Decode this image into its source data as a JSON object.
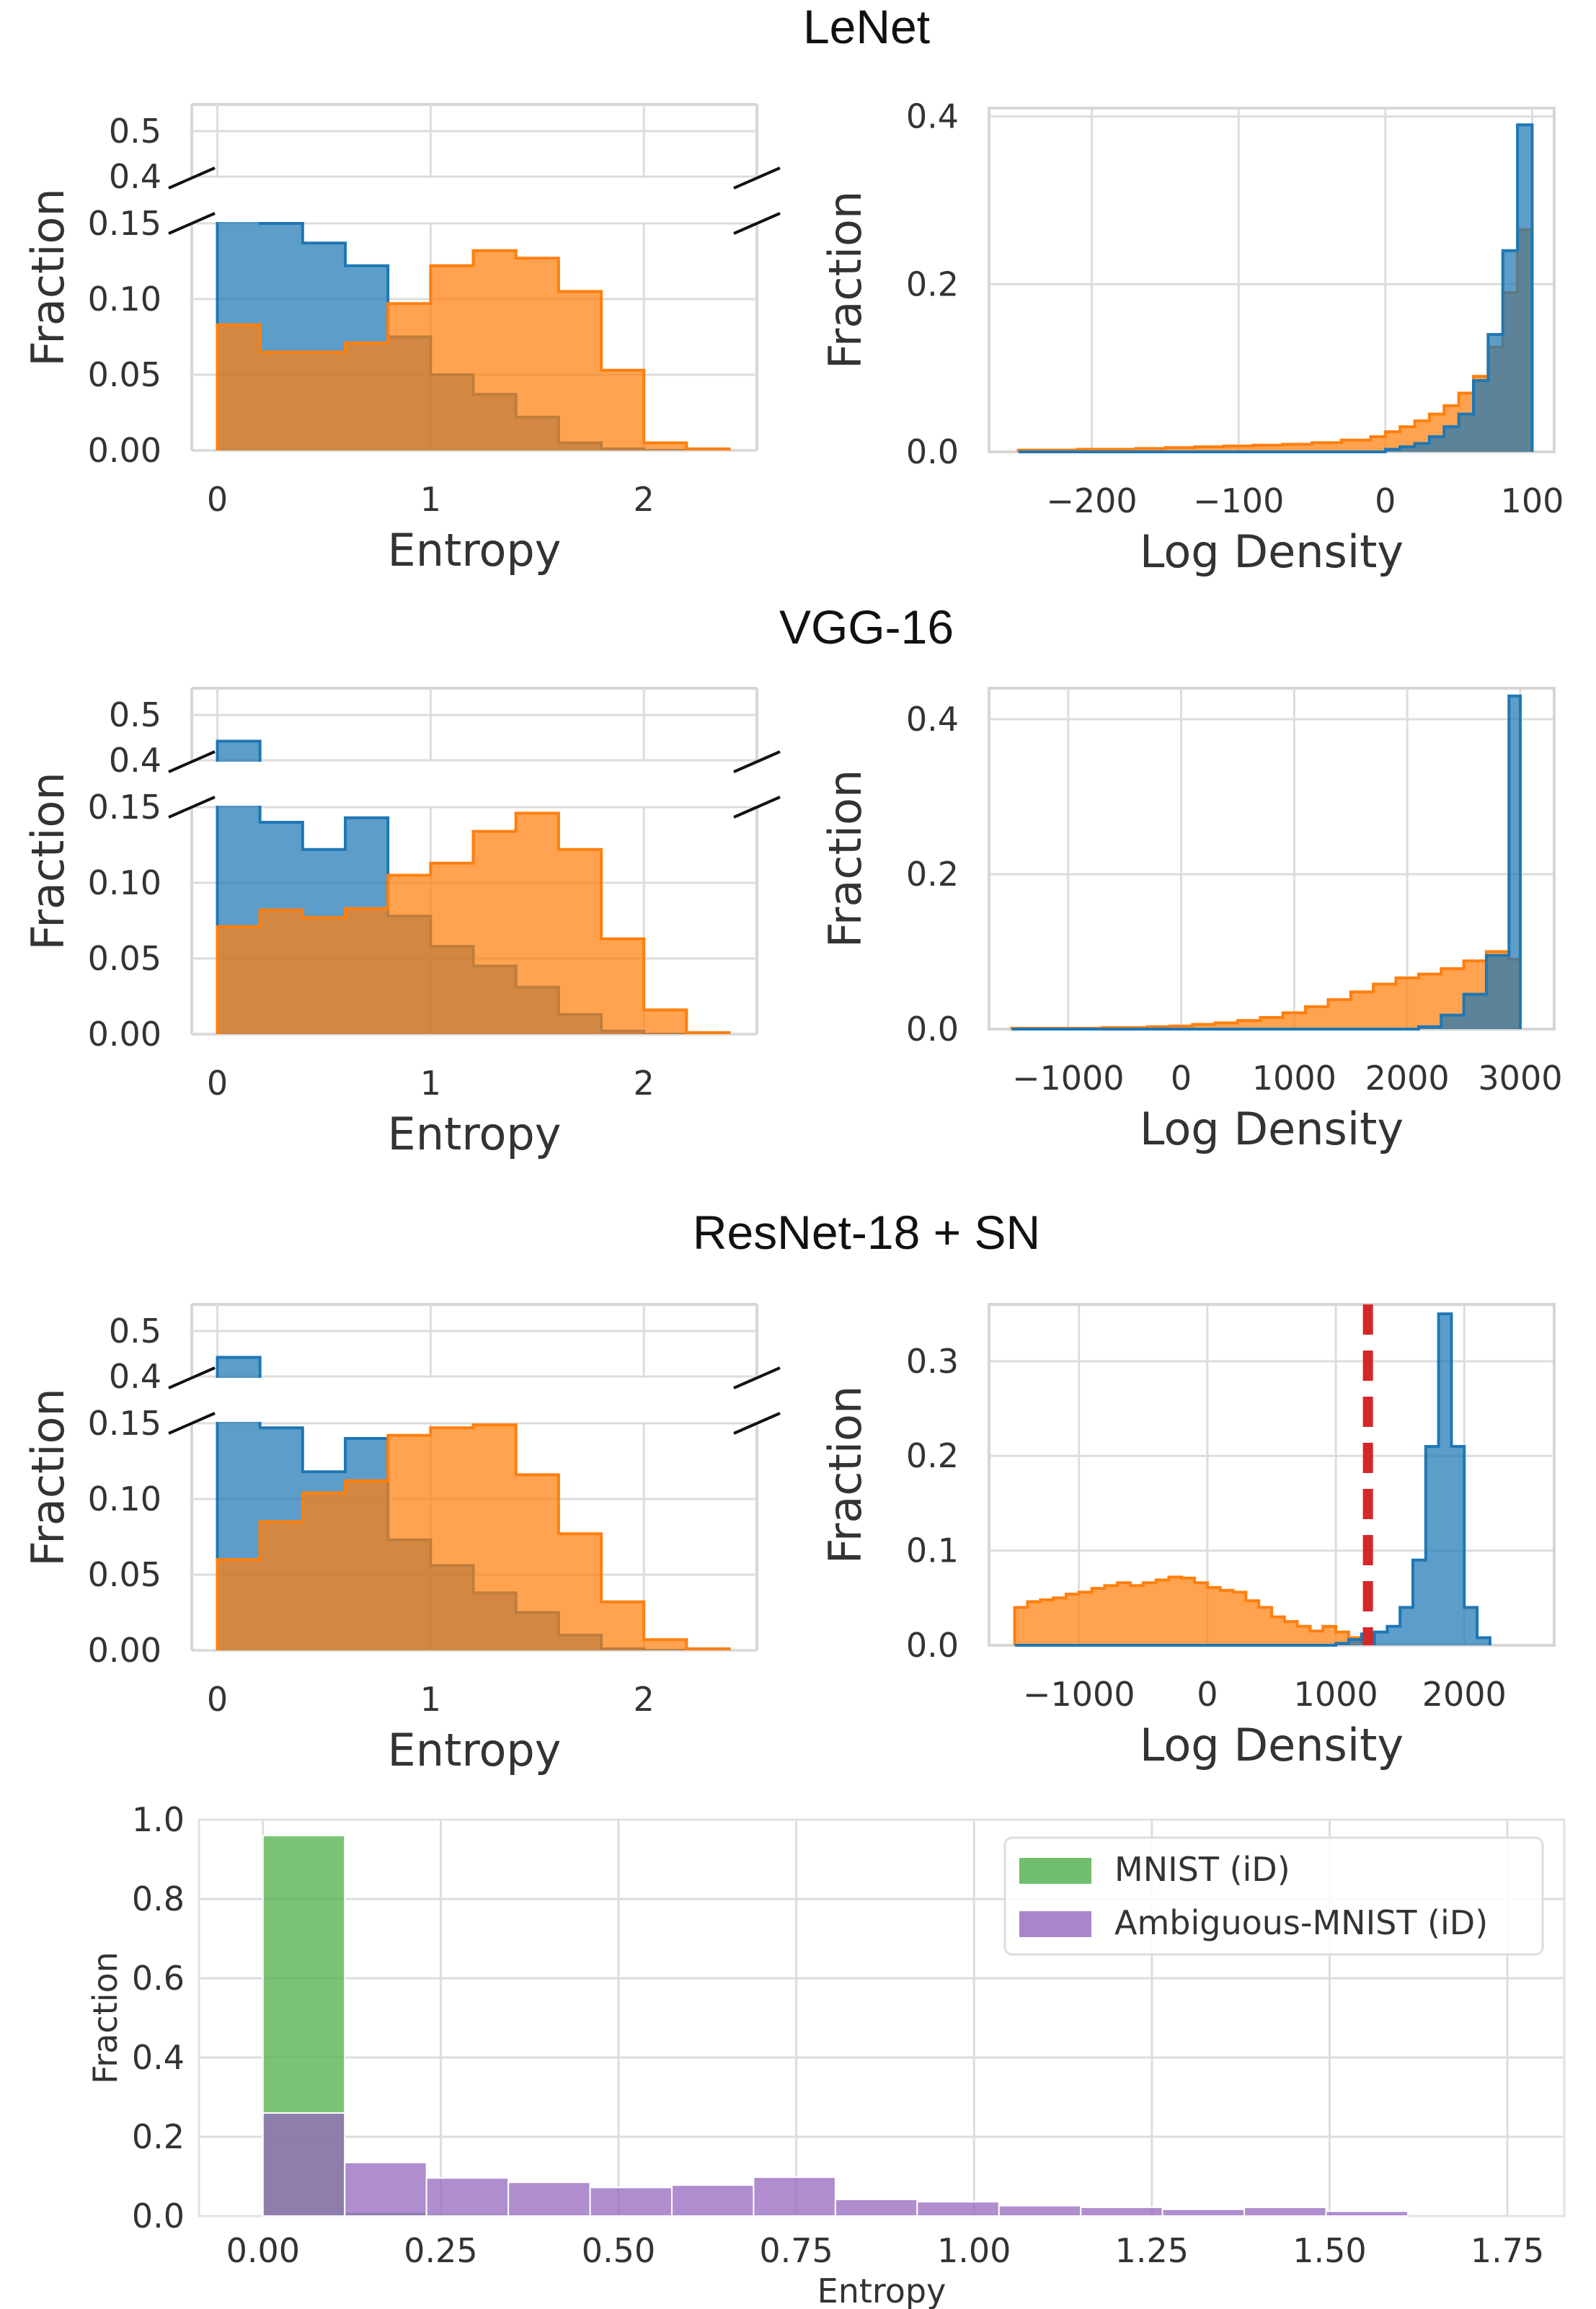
{
  "figure_titles": {
    "row1": "LeNet",
    "row2": "VGG-16",
    "row3": "ResNet-18 + SN"
  },
  "colors": {
    "blue": "#1f77b4",
    "orange": "#ff7f0e",
    "green": "#4daf4a",
    "purple": "#9467bd",
    "red_dashed": "#d62728"
  },
  "chart_data": [
    {
      "id": "lenet-entropy",
      "type": "area",
      "subtype": "step-histogram-broken-axis",
      "xlabel": "Entropy",
      "ylabel": "Fraction",
      "xlim": [
        -0.12,
        2.53
      ],
      "xticks": [
        "0",
        "1",
        "2"
      ],
      "upper_ylim": [
        0.4,
        0.5
      ],
      "upper_yticks": [
        "0.5",
        "0.4"
      ],
      "lower_ylim": [
        0,
        0.15
      ],
      "lower_yticks": [
        "0.15",
        "0.10",
        "0.05",
        "0.00"
      ],
      "bin_edges": [
        0,
        0.2,
        0.4,
        0.6,
        0.8,
        1.0,
        1.2,
        1.4,
        1.6,
        1.8,
        2.0,
        2.2,
        2.4
      ],
      "series": [
        {
          "color": "blue",
          "values": [
            0.4,
            0.15,
            0.137,
            0.122,
            0.075,
            0.05,
            0.037,
            0.022,
            0.005,
            0.001,
            0,
            0
          ]
        },
        {
          "color": "orange",
          "values": [
            0.083,
            0.065,
            0.065,
            0.071,
            0.097,
            0.122,
            0.132,
            0.127,
            0.105,
            0.053,
            0.005,
            0.001
          ]
        }
      ]
    },
    {
      "id": "lenet-logdensity",
      "type": "area",
      "subtype": "step-histogram",
      "xlabel": "Log Density",
      "ylabel": "Fraction",
      "xlim": [
        -270,
        115
      ],
      "ylim": [
        0,
        0.41
      ],
      "xticks": [
        "−200",
        "−100",
        "0",
        "100"
      ],
      "yticks": [
        "0.4",
        "0.2",
        "0.0"
      ],
      "bin_edges": [
        -250,
        -230,
        -210,
        -190,
        -170,
        -150,
        -130,
        -110,
        -90,
        -70,
        -50,
        -30,
        -10,
        0,
        10,
        20,
        30,
        40,
        50,
        60,
        70,
        80,
        90,
        100
      ],
      "series": [
        {
          "color": "orange",
          "values": [
            0.002,
            0.002,
            0.003,
            0.003,
            0.004,
            0.005,
            0.006,
            0.007,
            0.008,
            0.009,
            0.011,
            0.014,
            0.018,
            0.024,
            0.03,
            0.037,
            0.045,
            0.055,
            0.07,
            0.09,
            0.125,
            0.19,
            0.265
          ]
        },
        {
          "color": "blue",
          "values": [
            0,
            0,
            0,
            0,
            0,
            0,
            0,
            0,
            0,
            0,
            0,
            0,
            0,
            0.003,
            0.006,
            0.01,
            0.018,
            0.03,
            0.045,
            0.085,
            0.14,
            0.24,
            0.39
          ]
        }
      ]
    },
    {
      "id": "vgg-entropy",
      "type": "area",
      "subtype": "step-histogram-broken-axis",
      "xlabel": "Entropy",
      "ylabel": "Fraction",
      "xlim": [
        -0.12,
        2.53
      ],
      "xticks": [
        "0",
        "1",
        "2"
      ],
      "upper_ylim": [
        0.4,
        0.5
      ],
      "upper_yticks": [
        "0.5",
        "0.4"
      ],
      "lower_ylim": [
        0,
        0.15
      ],
      "lower_yticks": [
        "0.15",
        "0.10",
        "0.05",
        "0.00"
      ],
      "bin_edges": [
        0,
        0.2,
        0.4,
        0.6,
        0.8,
        1.0,
        1.2,
        1.4,
        1.6,
        1.8,
        2.0,
        2.2,
        2.4
      ],
      "series": [
        {
          "color": "blue",
          "values": [
            0.445,
            0.14,
            0.122,
            0.143,
            0.078,
            0.058,
            0.045,
            0.031,
            0.013,
            0.002,
            0,
            0
          ]
        },
        {
          "color": "orange",
          "values": [
            0.071,
            0.082,
            0.077,
            0.083,
            0.105,
            0.113,
            0.134,
            0.146,
            0.122,
            0.063,
            0.016,
            0.001
          ]
        }
      ]
    },
    {
      "id": "vgg-logdensity",
      "type": "area",
      "subtype": "step-histogram",
      "xlabel": "Log Density",
      "ylabel": "Fraction",
      "xlim": [
        -1700,
        3300
      ],
      "ylim": [
        0,
        0.44
      ],
      "xticks": [
        "−1000",
        "0",
        "1000",
        "2000",
        "3000"
      ],
      "yticks": [
        "0.4",
        "0.2",
        "0.0"
      ],
      "bin_edges": [
        -1500,
        -1300,
        -1100,
        -900,
        -700,
        -500,
        -300,
        -100,
        100,
        300,
        500,
        700,
        900,
        1100,
        1300,
        1500,
        1700,
        1900,
        2100,
        2300,
        2500,
        2700,
        2900,
        3000
      ],
      "series": [
        {
          "color": "orange",
          "values": [
            0.001,
            0.001,
            0.001,
            0.001,
            0.002,
            0.002,
            0.003,
            0.004,
            0.006,
            0.008,
            0.011,
            0.015,
            0.021,
            0.029,
            0.038,
            0.048,
            0.058,
            0.066,
            0.071,
            0.078,
            0.088,
            0.1,
            0.09
          ]
        },
        {
          "color": "blue",
          "values": [
            0,
            0,
            0,
            0,
            0,
            0,
            0,
            0,
            0,
            0,
            0,
            0,
            0,
            0,
            0,
            0,
            0,
            0,
            0.003,
            0.018,
            0.045,
            0.095,
            0.43
          ]
        }
      ]
    },
    {
      "id": "resnet-entropy",
      "type": "area",
      "subtype": "step-histogram-broken-axis",
      "xlabel": "Entropy",
      "ylabel": "Fraction",
      "xlim": [
        -0.12,
        2.53
      ],
      "xticks": [
        "0",
        "1",
        "2"
      ],
      "upper_ylim": [
        0.4,
        0.5
      ],
      "upper_yticks": [
        "0.5",
        "0.4"
      ],
      "lower_ylim": [
        0,
        0.15
      ],
      "lower_yticks": [
        "0.15",
        "0.10",
        "0.05",
        "0.00"
      ],
      "bin_edges": [
        0,
        0.2,
        0.4,
        0.6,
        0.8,
        1.0,
        1.2,
        1.4,
        1.6,
        1.8,
        2.0,
        2.2,
        2.4
      ],
      "series": [
        {
          "color": "blue",
          "values": [
            0.445,
            0.147,
            0.118,
            0.14,
            0.073,
            0.056,
            0.038,
            0.025,
            0.01,
            0.001,
            0,
            0
          ]
        },
        {
          "color": "orange",
          "values": [
            0.06,
            0.085,
            0.104,
            0.112,
            0.142,
            0.147,
            0.149,
            0.116,
            0.077,
            0.032,
            0.007,
            0.001
          ]
        }
      ]
    },
    {
      "id": "resnet-logdensity",
      "type": "area",
      "subtype": "step-histogram",
      "xlabel": "Log Density",
      "ylabel": "Fraction",
      "xlim": [
        -1700,
        2700
      ],
      "ylim": [
        0,
        0.36
      ],
      "xticks": [
        "−1000",
        "0",
        "1000",
        "2000"
      ],
      "yticks": [
        "0.3",
        "0.2",
        "0.1",
        "0.0"
      ],
      "reference_line": {
        "x": 1250,
        "color": "red_dashed",
        "style": "dashed"
      },
      "bin_edges": [
        -1500,
        -1400,
        -1300,
        -1200,
        -1100,
        -1000,
        -900,
        -800,
        -700,
        -600,
        -500,
        -400,
        -300,
        -200,
        -100,
        0,
        100,
        200,
        300,
        400,
        500,
        600,
        700,
        800,
        900,
        1000,
        1100,
        1200,
        1300
      ],
      "series": [
        {
          "color": "orange",
          "values": [
            0.04,
            0.046,
            0.048,
            0.05,
            0.054,
            0.056,
            0.06,
            0.063,
            0.066,
            0.063,
            0.066,
            0.069,
            0.072,
            0.071,
            0.066,
            0.061,
            0.058,
            0.056,
            0.047,
            0.04,
            0.03,
            0.025,
            0.02,
            0.015,
            0.02,
            0.014,
            0.008,
            0.003
          ]
        },
        {
          "color": "blue",
          "values": [
            0,
            0,
            0,
            0,
            0,
            0,
            0,
            0,
            0,
            0,
            0,
            0,
            0,
            0,
            0,
            0,
            0,
            0,
            0,
            0,
            0,
            0,
            0,
            0,
            0,
            0.002,
            0.006,
            0.012
          ]
        },
        {
          "color": "blue",
          "bin_edges": [
            1300,
            1400,
            1500,
            1600,
            1700,
            1800,
            1900,
            2000,
            2100,
            2200
          ],
          "values": [
            0.014,
            0.02,
            0.04,
            0.09,
            0.21,
            0.35,
            0.21,
            0.04,
            0.008
          ]
        }
      ]
    },
    {
      "id": "mnist-entropy",
      "type": "bar",
      "subtype": "histogram",
      "xlabel": "Entropy",
      "ylabel": "Fraction",
      "xlim": [
        -0.09,
        1.83
      ],
      "ylim": [
        0,
        1.0
      ],
      "xticks": [
        "0.00",
        "0.25",
        "0.50",
        "0.75",
        "1.00",
        "1.25",
        "1.50",
        "1.75"
      ],
      "yticks": [
        "1.0",
        "0.8",
        "0.6",
        "0.4",
        "0.2",
        "0.0"
      ],
      "legend": {
        "position": "top-right",
        "entries": [
          "MNIST (iD)",
          "Ambiguous-MNIST (iD)"
        ]
      },
      "bin_edges": [
        0.0,
        0.115,
        0.23,
        0.345,
        0.46,
        0.575,
        0.69,
        0.805,
        0.92,
        1.035,
        1.15,
        1.265,
        1.38,
        1.495,
        1.61
      ],
      "series": [
        {
          "name": "MNIST (iD)",
          "color": "green",
          "values": [
            0.96,
            0.01,
            0.005,
            0.003,
            0.002,
            0.002,
            0.002,
            0.001,
            0.001,
            0.001,
            0.001,
            0.001,
            0.001,
            0.001
          ]
        },
        {
          "name": "Ambiguous-MNIST (iD)",
          "color": "purple",
          "values": [
            0.26,
            0.135,
            0.096,
            0.085,
            0.072,
            0.078,
            0.098,
            0.042,
            0.036,
            0.026,
            0.022,
            0.017,
            0.022,
            0.012
          ]
        }
      ]
    }
  ]
}
